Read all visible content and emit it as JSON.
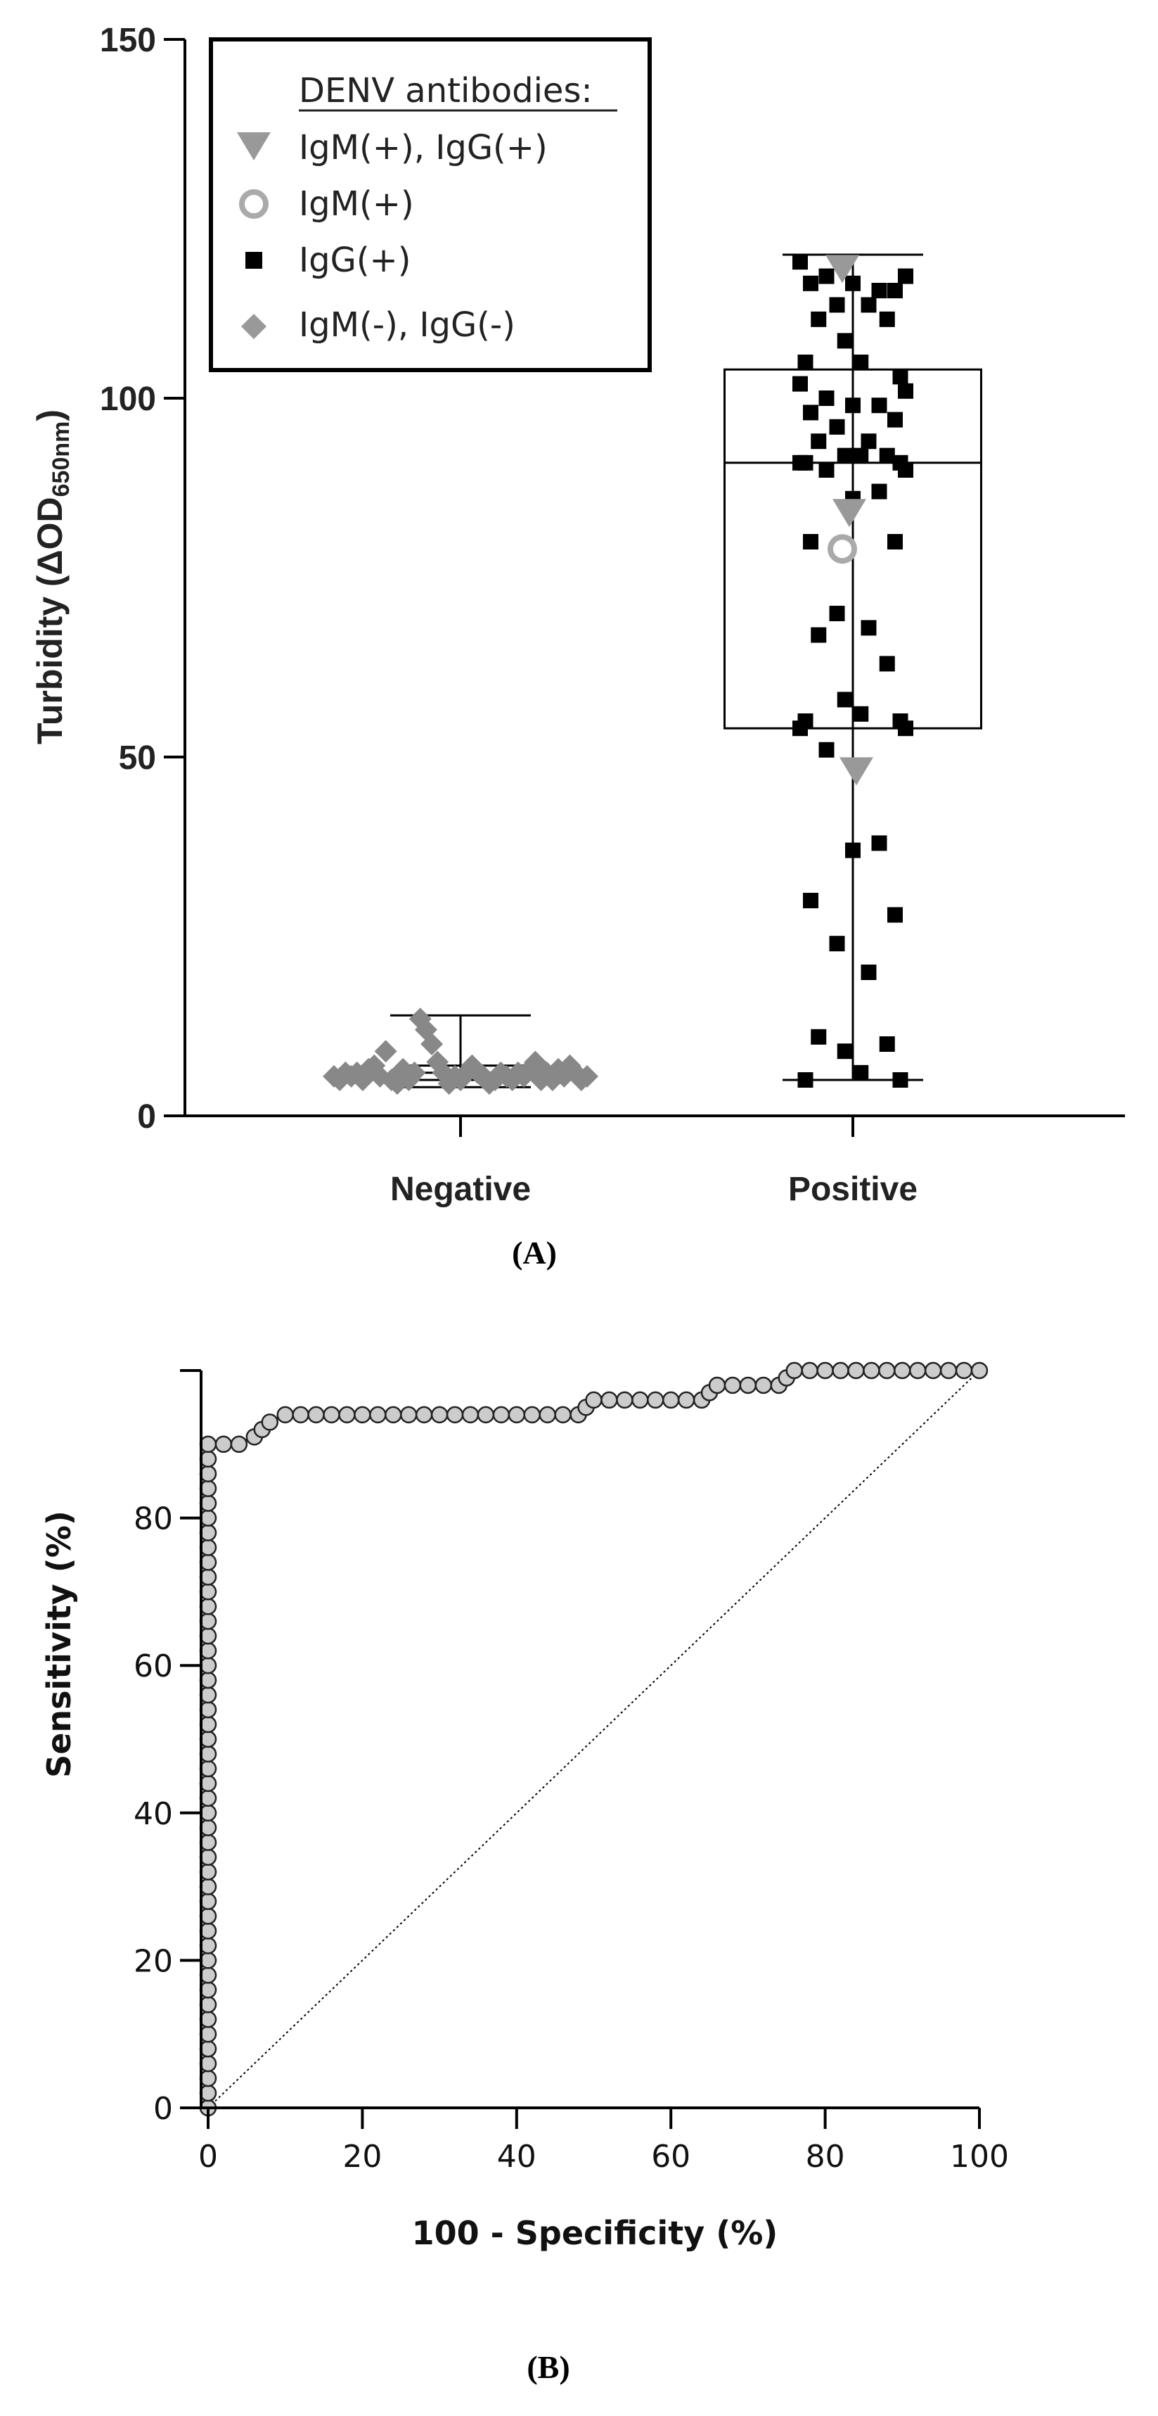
{
  "panel_a_label": "(A)",
  "panel_b_label": "(B)",
  "colors": {
    "grey": "#999999",
    "dark_grey": "#888888",
    "black": "#000000",
    "roc_marker_fill": "#bbbbbb"
  },
  "chart_data": [
    {
      "type": "box-scatter",
      "title": "",
      "ylabel_main": "Turbidity (ΔOD",
      "ylabel_sub": "650nm",
      "ylabel_close": ")",
      "ylim": [
        0,
        150
      ],
      "yticks": [
        "0",
        "50",
        "100",
        "150"
      ],
      "categories": [
        "Negative",
        "Positive"
      ],
      "legend": {
        "title": "DENV antibodies:",
        "entries": [
          {
            "label": "IgM(+), IgG(+)",
            "marker": "triangle-down",
            "color": "#999999"
          },
          {
            "label": "IgM(+)",
            "marker": "circle-open",
            "color": "#aaaaaa"
          },
          {
            "label": "IgG(+)",
            "marker": "square",
            "color": "#000000"
          },
          {
            "label": "IgM(-), IgG(-)",
            "marker": "diamond",
            "color": "#888888"
          }
        ]
      },
      "boxes": [
        {
          "category": "Negative",
          "min": 4,
          "q1": 5,
          "median": 6,
          "q3": 7,
          "max": 14
        },
        {
          "category": "Positive",
          "min": 5,
          "q1": 54,
          "median": 91,
          "q3": 104,
          "max": 120
        }
      ],
      "points": [
        {
          "category": "Negative",
          "group": "IgM(-), IgG(-)",
          "values": [
            5.5,
            5.0,
            6.0,
            5.5,
            6.0,
            5.0,
            6.5,
            7.0,
            5.5,
            9.0,
            5.0,
            4.5,
            6.5,
            5.0,
            6.0,
            13.5,
            12.0,
            10.0,
            7.5,
            6.0,
            4.5,
            5.5,
            5.0,
            6.0,
            7.0,
            6.0,
            5.5,
            4.5,
            5.0,
            6.0,
            5.5,
            5.0,
            6.0,
            5.5,
            6.5,
            7.5,
            5.0,
            6.0,
            5.0,
            6.5,
            5.5,
            7.0,
            6.0,
            5.0,
            5.5
          ]
        },
        {
          "category": "Positive",
          "group": "IgG(+)",
          "values": [
            119,
            117,
            117,
            115,
            116,
            116,
            115,
            113,
            113,
            111,
            111,
            108,
            105,
            105,
            103,
            102,
            101,
            100,
            99,
            99,
            98,
            97,
            96,
            94,
            94,
            92,
            92,
            92,
            91,
            91,
            91,
            90,
            90,
            87,
            86,
            80,
            80,
            70,
            68,
            67,
            63,
            58,
            56,
            55,
            55,
            54,
            54,
            51,
            38,
            37,
            30,
            28,
            24,
            20,
            11,
            10,
            9,
            6,
            5,
            5
          ]
        },
        {
          "category": "Positive",
          "group": "IgM(+), IgG(+)",
          "values": [
            118,
            84,
            48
          ]
        },
        {
          "category": "Positive",
          "group": "IgM(+)",
          "values": [
            79
          ]
        }
      ]
    },
    {
      "type": "line",
      "title": "",
      "xlabel": "100 - Specificity (%)",
      "ylabel": "Sensitivity (%)",
      "xlim": [
        0,
        100
      ],
      "ylim": [
        0,
        100
      ],
      "xticks": [
        "0",
        "20",
        "40",
        "60",
        "80",
        "100"
      ],
      "yticks": [
        "0",
        "20",
        "40",
        "60",
        "80"
      ],
      "series": [
        {
          "name": "ROC curve",
          "points": [
            [
              0,
              0
            ],
            [
              0,
              2
            ],
            [
              0,
              4
            ],
            [
              0,
              6
            ],
            [
              0,
              8
            ],
            [
              0,
              10
            ],
            [
              0,
              12
            ],
            [
              0,
              14
            ],
            [
              0,
              16
            ],
            [
              0,
              18
            ],
            [
              0,
              20
            ],
            [
              0,
              22
            ],
            [
              0,
              24
            ],
            [
              0,
              26
            ],
            [
              0,
              28
            ],
            [
              0,
              30
            ],
            [
              0,
              32
            ],
            [
              0,
              34
            ],
            [
              0,
              36
            ],
            [
              0,
              38
            ],
            [
              0,
              40
            ],
            [
              0,
              42
            ],
            [
              0,
              44
            ],
            [
              0,
              46
            ],
            [
              0,
              48
            ],
            [
              0,
              50
            ],
            [
              0,
              52
            ],
            [
              0,
              54
            ],
            [
              0,
              56
            ],
            [
              0,
              58
            ],
            [
              0,
              60
            ],
            [
              0,
              62
            ],
            [
              0,
              64
            ],
            [
              0,
              66
            ],
            [
              0,
              68
            ],
            [
              0,
              70
            ],
            [
              0,
              72
            ],
            [
              0,
              74
            ],
            [
              0,
              76
            ],
            [
              0,
              78
            ],
            [
              0,
              80
            ],
            [
              0,
              82
            ],
            [
              0,
              84
            ],
            [
              0,
              86
            ],
            [
              0,
              88
            ],
            [
              0,
              90
            ],
            [
              2,
              90
            ],
            [
              4,
              90
            ],
            [
              6,
              91
            ],
            [
              7,
              92
            ],
            [
              8,
              93
            ],
            [
              10,
              94
            ],
            [
              12,
              94
            ],
            [
              14,
              94
            ],
            [
              16,
              94
            ],
            [
              18,
              94
            ],
            [
              20,
              94
            ],
            [
              22,
              94
            ],
            [
              24,
              94
            ],
            [
              26,
              94
            ],
            [
              28,
              94
            ],
            [
              30,
              94
            ],
            [
              32,
              94
            ],
            [
              34,
              94
            ],
            [
              36,
              94
            ],
            [
              38,
              94
            ],
            [
              40,
              94
            ],
            [
              42,
              94
            ],
            [
              44,
              94
            ],
            [
              46,
              94
            ],
            [
              48,
              94
            ],
            [
              49,
              95
            ],
            [
              50,
              96
            ],
            [
              52,
              96
            ],
            [
              54,
              96
            ],
            [
              56,
              96
            ],
            [
              58,
              96
            ],
            [
              60,
              96
            ],
            [
              62,
              96
            ],
            [
              64,
              96
            ],
            [
              65,
              97
            ],
            [
              66,
              98
            ],
            [
              68,
              98
            ],
            [
              70,
              98
            ],
            [
              72,
              98
            ],
            [
              74,
              98
            ],
            [
              75,
              99
            ],
            [
              76,
              100
            ],
            [
              78,
              100
            ],
            [
              80,
              100
            ],
            [
              82,
              100
            ],
            [
              84,
              100
            ],
            [
              86,
              100
            ],
            [
              88,
              100
            ],
            [
              90,
              100
            ],
            [
              92,
              100
            ],
            [
              94,
              100
            ],
            [
              96,
              100
            ],
            [
              98,
              100
            ],
            [
              100,
              100
            ]
          ]
        },
        {
          "name": "reference",
          "style": "dotted",
          "points": [
            [
              0,
              0
            ],
            [
              100,
              100
            ]
          ]
        }
      ]
    }
  ]
}
